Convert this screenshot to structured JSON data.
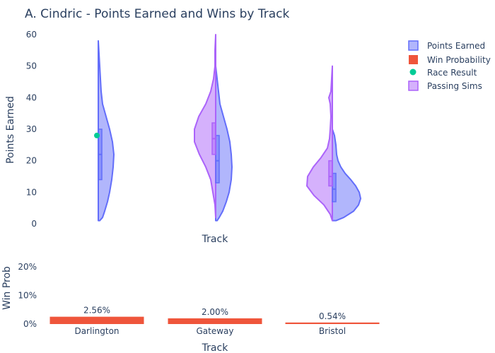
{
  "chart_data": {
    "type": "violin",
    "title": "A. Cindric - Points Earned and Wins by Track",
    "categories": [
      "Darlington",
      "Gateway",
      "Bristol"
    ],
    "top_panel": {
      "xlabel": "Track",
      "ylabel": "Points Earned",
      "ylim": [
        0,
        60
      ],
      "yticks": [
        0,
        10,
        20,
        30,
        40,
        50,
        60
      ],
      "series": [
        {
          "name": "Points Earned",
          "color": "#636efa",
          "side": "right",
          "box": [
            {
              "track": "Darlington",
              "q1": 14,
              "median": 22,
              "q3": 30,
              "min": 1,
              "max": 58
            },
            {
              "track": "Gateway",
              "q1": 13,
              "median": 20,
              "q3": 28,
              "min": 1,
              "max": 50
            },
            {
              "track": "Bristol",
              "q1": 7,
              "median": 11,
              "q3": 16,
              "min": 1,
              "max": 30
            }
          ]
        },
        {
          "name": "Passing Sims",
          "color": "#ab63fa",
          "side": "left",
          "box": [
            {
              "track": "Gateway",
              "q1": 22,
              "median": 27,
              "q3": 32,
              "min": 2,
              "max": 60
            },
            {
              "track": "Bristol",
              "q1": 12,
              "median": 15,
              "q3": 20,
              "min": 1,
              "max": 50
            }
          ]
        },
        {
          "name": "Race Result",
          "color": "#00cc96",
          "points": [
            {
              "track": "Darlington",
              "y": 28
            }
          ]
        }
      ]
    },
    "bottom_panel": {
      "xlabel": "Track",
      "ylabel": "Win Prob",
      "ylim": [
        0,
        0.25
      ],
      "yticks": [
        "0%",
        "10%",
        "20%"
      ],
      "series": [
        {
          "name": "Win Probability",
          "color": "#ef553b",
          "values": [
            0.0256,
            0.02,
            0.0054
          ],
          "labels": [
            "2.56%",
            "2.00%",
            "0.54%"
          ]
        }
      ]
    },
    "legend": [
      "Points Earned",
      "Win Probability",
      "Race Result",
      "Passing Sims"
    ],
    "legend_position": "top-right"
  }
}
